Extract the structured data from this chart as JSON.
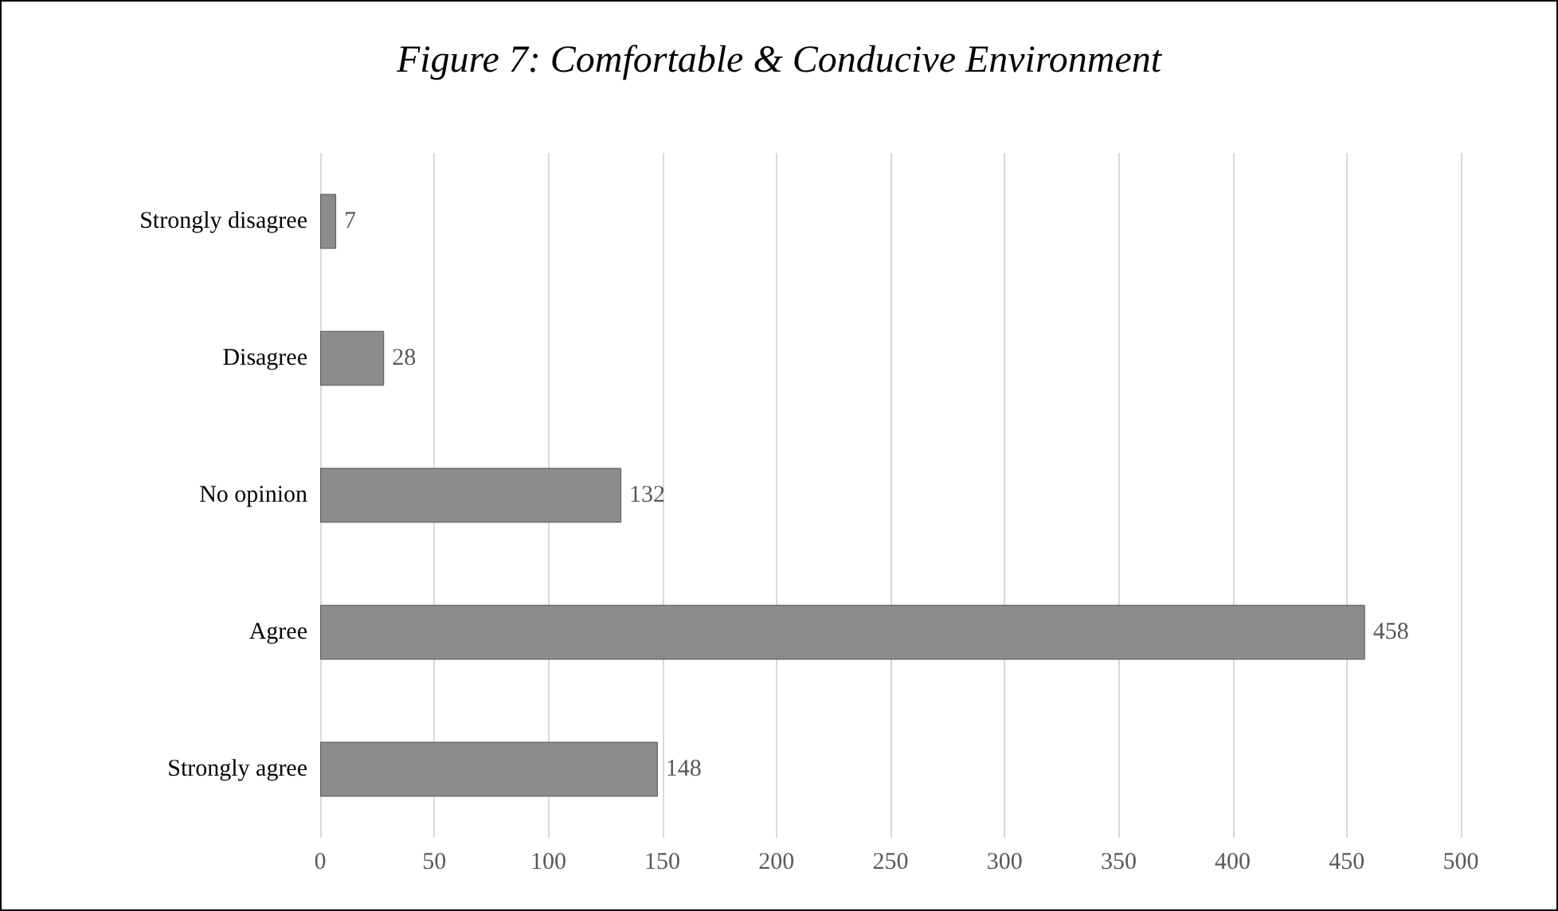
{
  "chart_data": {
    "type": "bar",
    "orientation": "horizontal",
    "title": "Figure 7: Comfortable & Conducive Environment",
    "categories": [
      "Strongly disagree",
      "Disagree",
      "No opinion",
      "Agree",
      "Strongly agree"
    ],
    "values": [
      7,
      28,
      132,
      458,
      148
    ],
    "color": "#8c8c8c",
    "xlim": [
      0,
      500
    ],
    "xticks": [
      0,
      50,
      100,
      150,
      200,
      250,
      300,
      350,
      400,
      450,
      500
    ],
    "grid": "x",
    "data_labels": true
  }
}
